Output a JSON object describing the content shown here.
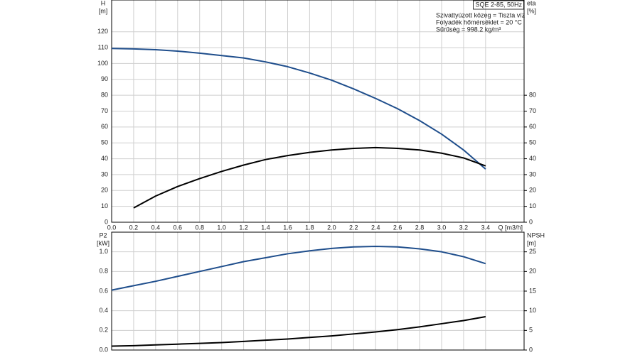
{
  "chart_data": [
    {
      "type": "line",
      "title": "SQE 2-85, 50Hz",
      "annotations": [
        "Szivattyúzott közeg = Tiszta víz",
        "Folyadék hőmérséklet = 20 °C",
        "Sűrűség = 998.2 kg/m³"
      ],
      "y_label": "H",
      "y_unit": "[m]",
      "y2_label": "eta",
      "y2_unit": "[%]",
      "x_label": "Q [m3/h]",
      "x": [
        0,
        0.2,
        0.4,
        0.6,
        0.8,
        1.0,
        1.2,
        1.4,
        1.6,
        1.8,
        2.0,
        2.2,
        2.4,
        2.6,
        2.8,
        3.0,
        3.2,
        3.4
      ],
      "xlim": [
        0,
        3.75
      ],
      "xticks": [
        {
          "value": 0,
          "label": "0.0"
        },
        0.2,
        0.4,
        0.6,
        0.8,
        {
          "value": 1,
          "label": "1.0"
        },
        1.2,
        1.4,
        1.6,
        1.8,
        {
          "value": 2,
          "label": "2.0"
        },
        2.2,
        2.4,
        2.6,
        2.8,
        {
          "value": 3,
          "label": "3.0"
        },
        3.2,
        3.4
      ],
      "ylim": [
        0,
        140
      ],
      "yticks": [
        0,
        10,
        20,
        30,
        40,
        50,
        60,
        70,
        80,
        90,
        100,
        110,
        120
      ],
      "y2lim": [
        0,
        140
      ],
      "y2ticks": [
        0,
        10,
        20,
        30,
        40,
        50,
        60,
        70,
        80
      ],
      "grid": true,
      "series": [
        {
          "color": "#1f4e8c",
          "values": [
            109.5,
            109.2,
            108.7,
            107.8,
            106.5,
            105,
            103.5,
            101,
            98,
            94,
            89.5,
            84,
            78,
            71.5,
            64,
            55.5,
            45.5,
            33.5
          ]
        },
        {
          "color": "#000000",
          "axis": "y2",
          "values": [
            null,
            9,
            16.5,
            22.5,
            27.5,
            32,
            36,
            39.5,
            42,
            44,
            45.5,
            46.5,
            47,
            46.5,
            45.5,
            43.5,
            40.5,
            35.5
          ]
        }
      ]
    },
    {
      "type": "line",
      "y_label": "P2",
      "y_unit": "[kW]",
      "y2_label": "NPSH",
      "y2_unit": "[m]",
      "x": [
        0,
        0.2,
        0.4,
        0.6,
        0.8,
        1.0,
        1.2,
        1.4,
        1.6,
        1.8,
        2.0,
        2.2,
        2.4,
        2.6,
        2.8,
        3.0,
        3.2,
        3.4
      ],
      "xlim": [
        0,
        3.75
      ],
      "ylim": [
        0,
        1.2
      ],
      "yticks": [
        {
          "value": 0,
          "label": "0.0"
        },
        0.2,
        0.4,
        0.6,
        0.8,
        {
          "value": 1,
          "label": "1.0"
        }
      ],
      "y2lim": [
        0,
        30
      ],
      "y2ticks": [
        0,
        5,
        10,
        15,
        20,
        25
      ],
      "grid": true,
      "series": [
        {
          "color": "#1f4e8c",
          "values": [
            0.61,
            0.655,
            0.7,
            0.75,
            0.8,
            0.85,
            0.9,
            0.94,
            0.98,
            1.01,
            1.035,
            1.05,
            1.055,
            1.05,
            1.03,
            1.0,
            0.95,
            0.88
          ]
        },
        {
          "color": "#000000",
          "axis": "y2",
          "values": [
            1,
            1.1,
            1.3,
            1.5,
            1.7,
            1.9,
            2.2,
            2.5,
            2.8,
            3.2,
            3.6,
            4.1,
            4.6,
            5.2,
            5.9,
            6.7,
            7.5,
            8.5
          ]
        }
      ]
    }
  ]
}
